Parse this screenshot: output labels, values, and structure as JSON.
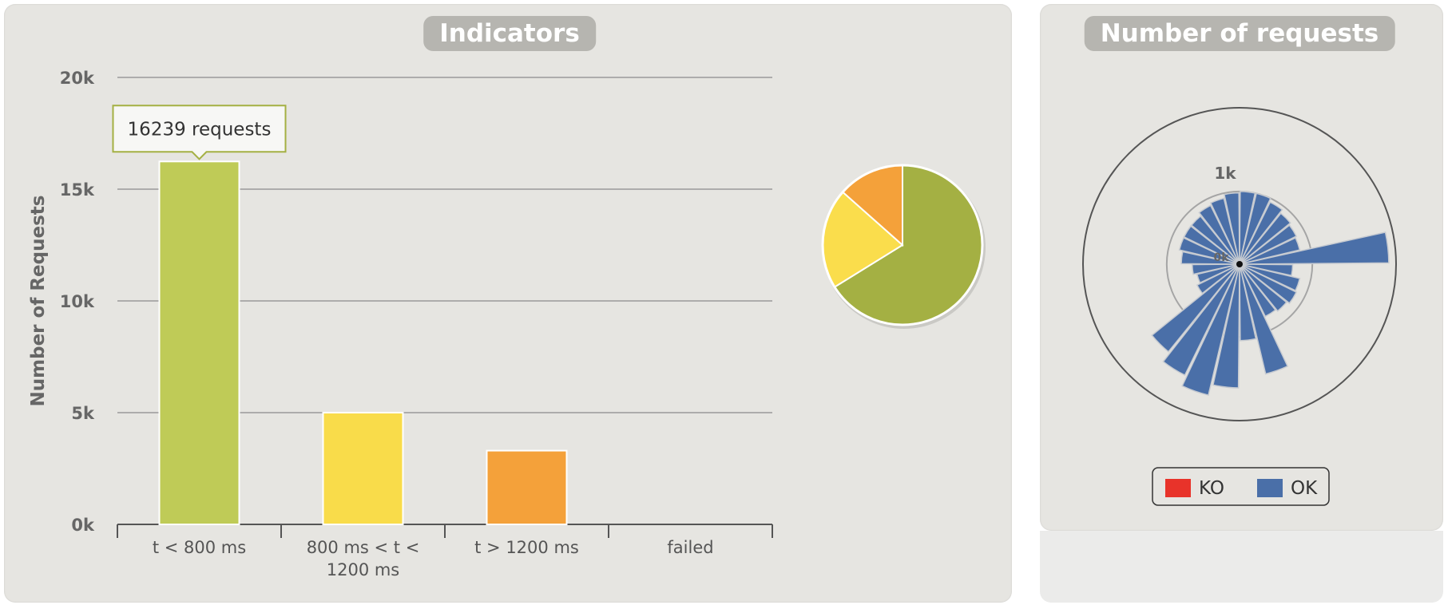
{
  "panels": {
    "indicators_title": "Indicators",
    "requests_title": "Number of requests"
  },
  "chart_data": [
    {
      "type": "bar",
      "title": "Indicators",
      "ylabel": "Number of Requests",
      "xlabel": "",
      "categories": [
        "t < 800 ms",
        "800 ms < t < 1200 ms",
        "t > 1200 ms",
        "failed"
      ],
      "category_lines": [
        [
          "t < 800 ms"
        ],
        [
          "800 ms < t <",
          "1200 ms"
        ],
        [
          "t > 1200 ms"
        ],
        [
          "failed"
        ]
      ],
      "values": [
        16239,
        5000,
        3300,
        0
      ],
      "colors": [
        "#bfcb57",
        "#f9dc4a",
        "#f4a13a",
        "#e03a2e"
      ],
      "ylim": [
        0,
        20000
      ],
      "yticks": [
        0,
        5000,
        10000,
        15000,
        20000
      ],
      "ytick_labels": [
        "0k",
        "5k",
        "10k",
        "15k",
        "20k"
      ],
      "grid": true,
      "tooltip": {
        "category_index": 0,
        "text": "16239 requests"
      }
    },
    {
      "type": "pie",
      "labels": [
        "t < 800 ms",
        "800 ms < t < 1200 ms",
        "t > 1200 ms",
        "failed"
      ],
      "values": [
        16239,
        5000,
        3300,
        0
      ],
      "colors": [
        "#a4b043",
        "#fadd4c",
        "#f4a13a",
        "#e03a2e"
      ]
    },
    {
      "type": "bar",
      "subtype": "polar-stacked",
      "title": "Number of requests",
      "radial_tick_labels": [
        "0k",
        "1k"
      ],
      "radial_ticks": [
        0,
        1000
      ],
      "rmax": 2150,
      "series": [
        {
          "name": "KO",
          "color": "#e8332a",
          "values": [
            0,
            0,
            0,
            0,
            0,
            0,
            0,
            0,
            0,
            0,
            0,
            0,
            0,
            0,
            0,
            0,
            0,
            0,
            0,
            0,
            0,
            0,
            0,
            0,
            0,
            0,
            0,
            0
          ]
        },
        {
          "name": "OK",
          "color": "#4a6fa8",
          "values": [
            1000,
            1000,
            950,
            900,
            870,
            850,
            2050,
            730,
            850,
            870,
            830,
            800,
            1550,
            1050,
            1700,
            1850,
            1700,
            1550,
            650,
            600,
            650,
            800,
            850,
            850,
            850,
            900,
            930,
            980
          ]
        }
      ],
      "legend_position": "bottom"
    }
  ]
}
